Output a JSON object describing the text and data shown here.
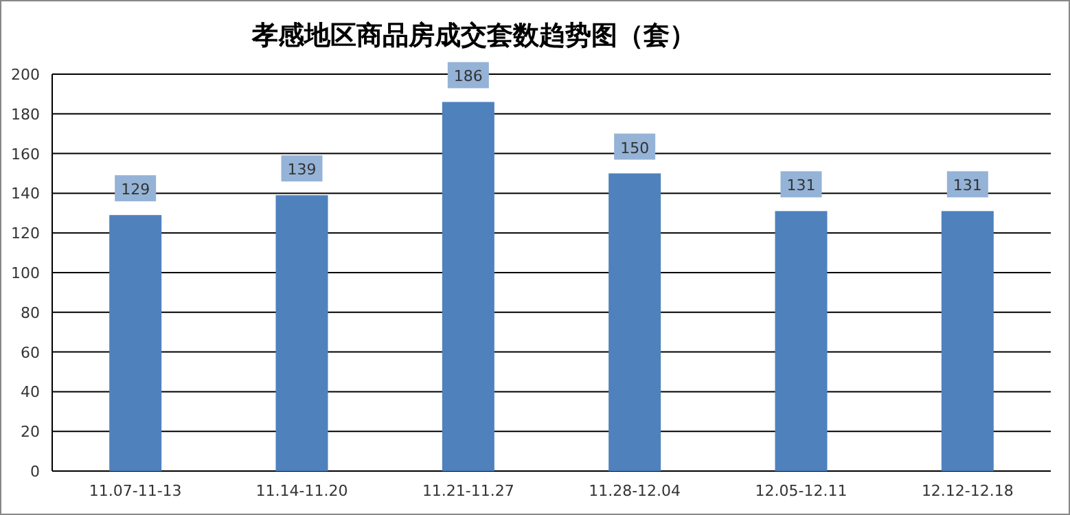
{
  "chart_data": {
    "type": "bar",
    "title": "孝感地区商品房成交套数趋势图（套）",
    "categories": [
      "11.07-11-13",
      "11.14-11.20",
      "11.21-11.27",
      "11.28-12.04",
      "12.05-12.11",
      "12.12-12.18"
    ],
    "values": [
      129,
      139,
      186,
      150,
      131,
      131
    ],
    "color": "#4f81bd",
    "ylim": [
      0,
      200
    ],
    "yticks": [
      0,
      20,
      40,
      60,
      80,
      100,
      120,
      140,
      160,
      180,
      200
    ],
    "grid": "y",
    "data_labels": true
  }
}
